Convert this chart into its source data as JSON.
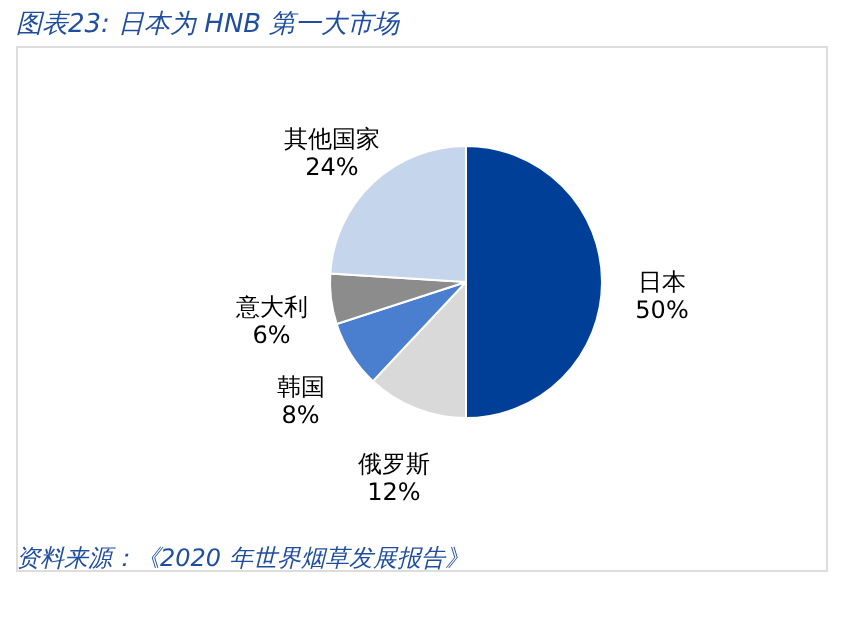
{
  "chart_data": {
    "type": "pie",
    "title": "图表23:  日本为 HNB 第一大市场",
    "categories": [
      "日本",
      "俄罗斯",
      "韩国",
      "意大利",
      "其他国家"
    ],
    "values": [
      50,
      12,
      8,
      6,
      24
    ],
    "colors": [
      "#003f98",
      "#d9d9d9",
      "#4a7fcf",
      "#8c8c8c",
      "#c5d5ec"
    ],
    "value_labels": [
      "50%",
      "12%",
      "8%",
      "6%",
      "24%"
    ],
    "legend": false,
    "annotations": [
      "资料来源：《2020 年世界烟草发展报告》"
    ]
  }
}
